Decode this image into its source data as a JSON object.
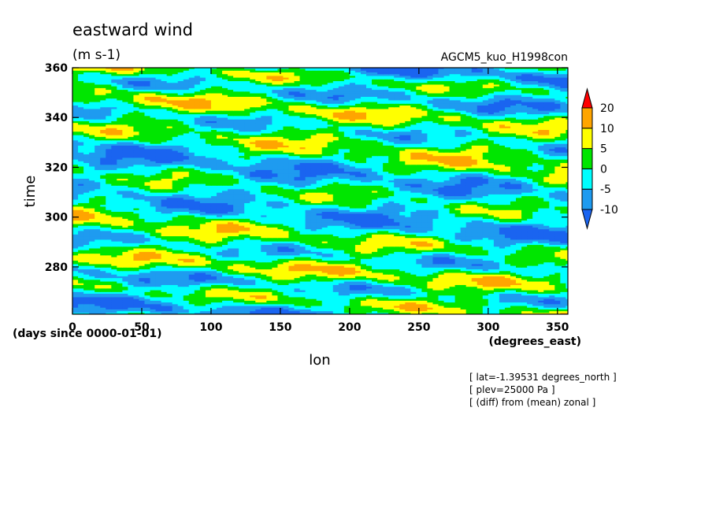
{
  "chart_data": {
    "type": "heatmap",
    "title": "eastward wind",
    "units": "(m s-1)",
    "run_name": "AGCM5_kuo_H1998con",
    "xlabel": "lon",
    "xunits": "(degrees_east)",
    "ylabel": "time",
    "yunits": "(days since 0000-01-01)",
    "xlim": [
      0,
      357.5
    ],
    "ylim": [
      261,
      360
    ],
    "x_ticks": [
      0,
      50,
      100,
      150,
      200,
      250,
      300,
      350
    ],
    "y_ticks": [
      280,
      300,
      320,
      340,
      360
    ],
    "colorbar": {
      "levels": [
        -10,
        -5,
        0,
        5,
        10,
        20
      ],
      "colors": [
        "#1a64f0",
        "#1e9bf0",
        "#00ffff",
        "#00e600",
        "#ffff00",
        "#ffa500",
        "#ff0000"
      ],
      "extend": "both"
    },
    "annotations": [
      "[ lat=-1.39531 degrees_north ]",
      "[ plev=25000 Pa ]",
      "[ (diff) from (mean) zonal ]"
    ]
  }
}
